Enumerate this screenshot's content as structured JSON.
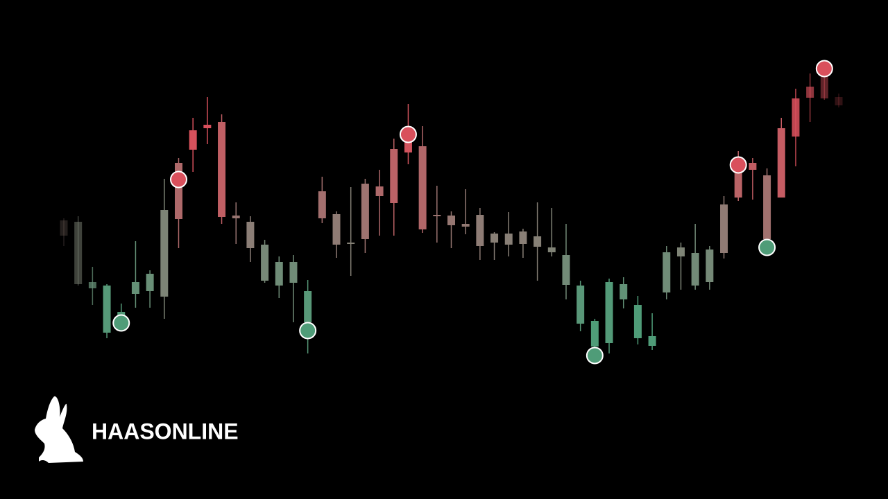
{
  "chart_data": {
    "type": "candlestick",
    "ylim": [
      0,
      720
    ],
    "colors": {
      "high": "#d9505c",
      "mid": "#8a7e76",
      "low": "#4f9c78"
    },
    "open": [
      380,
      310,
      304,
      240,
      265,
      296,
      300,
      292,
      404,
      504,
      535,
      407,
      405,
      362,
      315,
      308,
      312,
      255,
      405,
      367,
      368,
      375,
      437,
      427,
      500,
      389,
      409,
      395,
      393,
      365,
      370,
      367,
      368,
      364,
      356,
      309,
      253,
      220,
      225,
      288,
      232,
      221,
      298,
      350,
      308,
      313,
      355,
      435,
      475,
      375,
      435,
      523,
      579,
      578,
      568
    ],
    "close": [
      402,
      400,
      313,
      308,
      270,
      313,
      325,
      417,
      485,
      532,
      540,
      544,
      409,
      400,
      367,
      342,
      342,
      300,
      444,
      411,
      370,
      455,
      451,
      505,
      515,
      509,
      410,
      409,
      397,
      410,
      383,
      383,
      386,
      379,
      363,
      352,
      308,
      257,
      313,
      310,
      280,
      235,
      356,
      363,
      355,
      360,
      425,
      492,
      485,
      467,
      535,
      578,
      595,
      610,
      580
    ],
    "high": [
      405,
      408,
      335,
      310,
      282,
      372,
      330,
      462,
      492,
      550,
      580,
      555,
      428,
      408,
      374,
      350,
      352,
      316,
      465,
      415,
      450,
      462,
      475,
      520,
      570,
      538,
      452,
      415,
      447,
      420,
      385,
      414,
      390,
      428,
      420,
      397,
      315,
      260,
      318,
      320,
      293,
      268,
      365,
      370,
      397,
      365,
      437,
      502,
      492,
      477,
      550,
      592,
      614,
      615,
      585
    ],
    "low": [
      365,
      308,
      280,
      232,
      255,
      276,
      276,
      260,
      362,
      472,
      512,
      397,
      368,
      342,
      312,
      290,
      255,
      210,
      398,
      348,
      322,
      355,
      380,
      380,
      483,
      384,
      370,
      362,
      382,
      345,
      345,
      350,
      348,
      315,
      350,
      288,
      242,
      208,
      210,
      275,
      223,
      215,
      288,
      302,
      302,
      302,
      347,
      430,
      432,
      360,
      435,
      480,
      544,
      576,
      565
    ],
    "markers": [
      {
        "index": 4,
        "y": 254,
        "color": "#4f9c78"
      },
      {
        "index": 8,
        "y": 461,
        "color": "#d9505c"
      },
      {
        "index": 17,
        "y": 243,
        "color": "#4f9c78"
      },
      {
        "index": 24,
        "y": 526,
        "color": "#d9505c"
      },
      {
        "index": 37,
        "y": 207,
        "color": "#4f9c78"
      },
      {
        "index": 47,
        "y": 482,
        "color": "#d9505c"
      },
      {
        "index": 49,
        "y": 363,
        "color": "#4f9c78"
      },
      {
        "index": 53,
        "y": 621,
        "color": "#d9505c"
      }
    ]
  },
  "brand": "HAASONLINE"
}
